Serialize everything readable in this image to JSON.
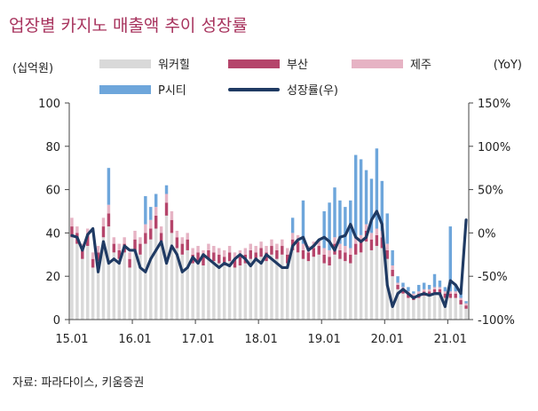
{
  "title": "업장별 카지노 매출액 추이 성장률",
  "units": {
    "left": "(십억원)",
    "right": "(YoY)"
  },
  "source": "자료: 파라다이스, 키움증권",
  "colors": {
    "walkerhill": "#d9d9d9",
    "busan": "#b5456b",
    "jeju": "#e6b3c4",
    "pcity": "#6ea6db",
    "growth": "#1f3a63",
    "title": "#a8345e"
  },
  "legend": [
    {
      "key": "walkerhill",
      "label": "워커힐",
      "kind": "bar"
    },
    {
      "key": "busan",
      "label": "부산",
      "kind": "bar"
    },
    {
      "key": "jeju",
      "label": "제주",
      "kind": "bar"
    },
    {
      "key": "pcity",
      "label": "P시티",
      "kind": "bar"
    },
    {
      "key": "growth",
      "label": "성장률(우)",
      "kind": "line"
    }
  ],
  "chart_data": {
    "type": "bar",
    "stacked": true,
    "x_start": "2015-01",
    "xtick_labels": [
      "15.01",
      "16.01",
      "17.01",
      "18.01",
      "19.01",
      "20.01",
      "21.01"
    ],
    "left_axis": {
      "min": 0,
      "max": 100,
      "ticks": [
        0,
        20,
        40,
        60,
        80,
        100
      ]
    },
    "right_axis": {
      "min": -100,
      "max": 150,
      "ticks": [
        "-100%",
        "-50%",
        "0%",
        "50%",
        "100%",
        "150%"
      ],
      "tick_values": [
        -100,
        -50,
        0,
        50,
        100,
        150
      ]
    },
    "series": [
      {
        "name": "워커힐",
        "key": "walkerhill",
        "values": [
          38,
          35,
          28,
          34,
          24,
          27,
          38,
          43,
          31,
          28,
          31,
          24,
          32,
          30,
          35,
          37,
          42,
          35,
          48,
          40,
          33,
          30,
          32,
          26,
          27,
          25,
          28,
          27,
          26,
          25,
          27,
          24,
          25,
          26,
          28,
          27,
          29,
          27,
          30,
          28,
          30,
          26,
          32,
          31,
          28,
          27,
          29,
          30,
          26,
          25,
          30,
          28,
          27,
          26,
          30,
          31,
          36,
          32,
          34,
          33,
          28,
          20,
          14,
          12,
          10,
          9,
          10,
          11,
          11,
          12,
          12,
          10,
          10,
          10,
          7,
          5
        ]
      },
      {
        "name": "부산",
        "key": "busan",
        "values": [
          5,
          5,
          4,
          5,
          4,
          4,
          5,
          6,
          4,
          4,
          4,
          4,
          5,
          5,
          5,
          5,
          6,
          5,
          6,
          6,
          5,
          5,
          5,
          4,
          4,
          4,
          4,
          4,
          4,
          4,
          4,
          4,
          4,
          4,
          4,
          4,
          4,
          4,
          4,
          4,
          4,
          4,
          5,
          5,
          4,
          4,
          4,
          4,
          4,
          4,
          5,
          4,
          4,
          4,
          5,
          5,
          5,
          5,
          5,
          5,
          4,
          3,
          2,
          2,
          2,
          2,
          2,
          2,
          2,
          2,
          2,
          2,
          2,
          2,
          2,
          1.5
        ]
      },
      {
        "name": "제주",
        "key": "jeju",
        "values": [
          4,
          3,
          3,
          3,
          3,
          3,
          4,
          4,
          3,
          3,
          3,
          3,
          4,
          3,
          4,
          4,
          4,
          3,
          4,
          4,
          3,
          3,
          3,
          3,
          3,
          3,
          3,
          3,
          3,
          3,
          3,
          3,
          3,
          3,
          3,
          3,
          3,
          3,
          3,
          3,
          3,
          3,
          3,
          3,
          3,
          3,
          3,
          3,
          3,
          3,
          3,
          3,
          3,
          3,
          3,
          3,
          3,
          3,
          3,
          3,
          3,
          2,
          1,
          1,
          1,
          1,
          1,
          1,
          1,
          1,
          1,
          1,
          1,
          1,
          1,
          1
        ]
      },
      {
        "name": "P시티",
        "key": "pcity",
        "values": [
          0,
          0,
          0,
          0,
          0,
          0,
          0,
          17,
          0,
          0,
          0,
          0,
          0,
          0,
          13,
          6,
          6,
          0,
          4,
          0,
          0,
          0,
          0,
          0,
          0,
          0,
          0,
          0,
          0,
          0,
          0,
          0,
          0,
          0,
          0,
          0,
          0,
          0,
          0,
          0,
          0,
          0,
          7,
          0,
          20,
          0,
          0,
          0,
          17,
          22,
          23,
          20,
          18,
          22,
          38,
          35,
          25,
          25,
          37,
          23,
          14,
          7,
          3,
          2,
          2,
          1,
          3,
          3,
          2,
          6,
          3,
          2,
          30,
          3,
          2,
          1
        ]
      },
      {
        "name": "성장률(우)",
        "key": "growth",
        "axis": "right",
        "values": [
          -3,
          -5,
          -20,
          -2,
          5,
          -45,
          -10,
          -35,
          -30,
          -35,
          -15,
          -20,
          -20,
          -40,
          -45,
          -30,
          -20,
          -10,
          -35,
          -15,
          -25,
          -45,
          -40,
          -28,
          -35,
          -25,
          -30,
          -35,
          -40,
          -35,
          -38,
          -30,
          -25,
          -30,
          -38,
          -30,
          -35,
          -25,
          -30,
          -35,
          -40,
          -40,
          -15,
          -8,
          -5,
          -20,
          -15,
          -8,
          -5,
          -10,
          -20,
          -5,
          -3,
          10,
          -5,
          -10,
          -5,
          15,
          25,
          10,
          -60,
          -85,
          -70,
          -65,
          -70,
          -75,
          -72,
          -70,
          -72,
          -70,
          -70,
          -85,
          -55,
          -60,
          -70,
          15
        ]
      }
    ]
  }
}
